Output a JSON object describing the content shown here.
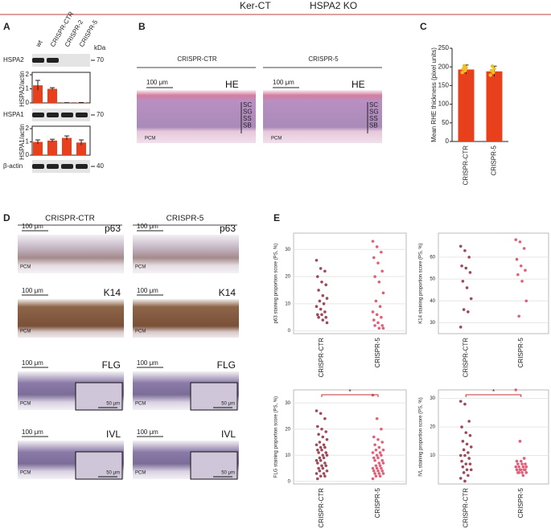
{
  "header": {
    "left": "Ker-CT",
    "right": "HSPA2 KO"
  },
  "panel_labels": [
    "A",
    "B",
    "C",
    "D",
    "E"
  ],
  "blot": {
    "lanes": [
      "wt",
      "CRISPR-CTR",
      "CRISPR-2",
      "CRISPR-5"
    ],
    "unit": "kDa",
    "rows": [
      {
        "name": "HSPA2",
        "marker": 70
      },
      {
        "name": "HSPA1",
        "marker": 70
      },
      {
        "name": "β-actin",
        "marker": 40
      }
    ]
  },
  "he": {
    "columns": [
      "CRISPR-CTR",
      "CRISPR-5"
    ],
    "scale": "100 μm",
    "stain": "HE",
    "layers": [
      "SC",
      "SG",
      "SS",
      "SB"
    ],
    "pcm": "PCM"
  },
  "ihc": {
    "columns": [
      "CRISPR-CTR",
      "CRISPR-5"
    ],
    "scale": "100 μm",
    "inset_scale": "50 μm",
    "markers": [
      "p63",
      "K14",
      "FLG",
      "IVL"
    ],
    "pcm": "PCM"
  },
  "chart_data": [
    {
      "type": "bar",
      "y_label": "HSPA2/actin",
      "values": [
        1.25,
        1.0,
        0.02,
        0.03
      ],
      "errors": [
        0.35,
        0.08,
        0,
        0
      ],
      "color": "#e8401c",
      "ylim": [
        0,
        2
      ],
      "yticks": [
        0,
        1,
        2
      ]
    },
    {
      "type": "bar",
      "y_label": "HSPA1/actin",
      "values": [
        1.0,
        1.1,
        1.3,
        0.95
      ],
      "errors": [
        0.15,
        0.1,
        0.15,
        0.2
      ],
      "color": "#e8401c",
      "ylim": [
        0,
        2
      ],
      "yticks": [
        0,
        1,
        2
      ]
    },
    {
      "type": "bar",
      "y_label": "Mean RHE thickness (pixel units)",
      "categories": [
        "CRISPR-CTR",
        "CRISPR-5"
      ],
      "values": [
        193,
        188
      ],
      "errors": [
        12,
        14
      ],
      "points": [
        [
          185,
          195,
          203,
          190,
          198
        ],
        [
          178,
          190,
          202,
          185,
          195
        ]
      ],
      "color": "#e8401c",
      "point_color": "#f0c020",
      "ylim": [
        0,
        250
      ],
      "yticks": [
        0,
        50,
        100,
        150,
        200,
        250
      ]
    },
    {
      "type": "strip",
      "y_label": "p63 staining proportion score (PS, %)",
      "categories": [
        "CRISPR-CTR",
        "CRISPR-5"
      ],
      "series": [
        {
          "color": "#9e4a5a",
          "values": [
            26,
            23,
            22,
            20,
            18,
            17,
            15,
            13,
            12,
            11,
            10,
            9,
            8,
            7,
            6,
            6,
            5,
            5,
            4,
            3
          ]
        },
        {
          "color": "#e0607a",
          "values": [
            33,
            31,
            29,
            27,
            25,
            22,
            20,
            18,
            14,
            11,
            9,
            7,
            6,
            5,
            4,
            3,
            2,
            2,
            1,
            1
          ]
        }
      ],
      "ylim": [
        -1,
        36
      ],
      "yticks": [
        0,
        10,
        20,
        30
      ],
      "grid": true
    },
    {
      "type": "strip",
      "y_label": "K14 staining proportion score (PS, %)",
      "categories": [
        "CRISPR-CTR",
        "CRISPR-5"
      ],
      "series": [
        {
          "color": "#9e4a5a",
          "values": [
            65,
            63,
            60,
            56,
            55,
            53,
            49,
            46,
            41,
            36,
            35,
            28
          ]
        },
        {
          "color": "#e0607a",
          "values": [
            68,
            67,
            64,
            59,
            56,
            54,
            52,
            49,
            40,
            33
          ]
        }
      ],
      "ylim": [
        25,
        71
      ],
      "yticks": [
        30,
        40,
        50,
        60
      ],
      "grid": true
    },
    {
      "type": "strip",
      "y_label": "FLG staining proportion score (PS, %)",
      "categories": [
        "CRISPR-CTR",
        "CRISPR-5"
      ],
      "significance": "*",
      "series": [
        {
          "color": "#9e4a5a",
          "values": [
            27,
            26,
            24,
            21,
            20,
            19,
            18,
            17,
            16,
            15,
            14,
            14,
            13,
            13,
            12,
            12,
            11,
            11,
            10,
            10,
            9,
            9,
            8,
            8,
            7,
            7,
            6,
            6,
            5,
            5,
            4,
            4,
            3,
            3,
            2,
            2,
            1
          ]
        },
        {
          "color": "#e0607a",
          "values": [
            33,
            24,
            20,
            17,
            16,
            15,
            14,
            13,
            12,
            12,
            11,
            11,
            10,
            10,
            9,
            9,
            8,
            8,
            7,
            7,
            6,
            6,
            5,
            5,
            5,
            4,
            4,
            4,
            3,
            3,
            3,
            2,
            2,
            1
          ]
        }
      ],
      "ylim": [
        -1,
        35
      ],
      "yticks": [
        0,
        10,
        20,
        30
      ],
      "grid": true
    },
    {
      "type": "strip",
      "y_label": "IVL staining proportion score (PS, %)",
      "categories": [
        "CRISPR-CTR",
        "CRISPR-5"
      ],
      "significance": "*",
      "series": [
        {
          "color": "#9e4a5a",
          "values": [
            29,
            28,
            22,
            20,
            18,
            17,
            15,
            14,
            13,
            12,
            11,
            10,
            10,
            9,
            8,
            7,
            7,
            6,
            5,
            5,
            4,
            3,
            2,
            1
          ]
        },
        {
          "color": "#e0607a",
          "values": [
            33,
            15,
            9,
            8,
            8,
            7,
            7,
            7,
            6,
            6,
            6,
            6,
            5,
            5,
            5,
            5,
            5,
            4,
            4,
            4,
            4,
            3
          ]
        }
      ],
      "ylim": [
        0,
        33
      ],
      "yticks": [
        10,
        20,
        30
      ],
      "grid": true
    }
  ]
}
